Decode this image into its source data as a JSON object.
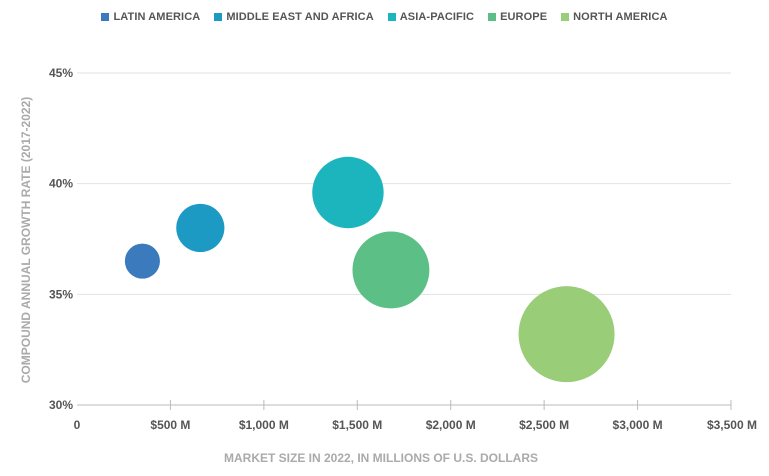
{
  "chart_data": {
    "type": "scatter",
    "title": "",
    "xlabel": "MARKET SIZE IN 2022, IN MILLIONS OF U.S. DOLLARS",
    "ylabel": "COMPOUND ANNUAL GROWTH RATE (2017-2022)",
    "xlim": [
      0,
      3500
    ],
    "ylim": [
      30,
      45
    ],
    "x_ticks": [
      {
        "value": 0,
        "label": "0"
      },
      {
        "value": 500,
        "label": "$500 M"
      },
      {
        "value": 1000,
        "label": "$1,000 M"
      },
      {
        "value": 1500,
        "label": "$1,500 M"
      },
      {
        "value": 2000,
        "label": "$2,000 M"
      },
      {
        "value": 2500,
        "label": "$2,500 M"
      },
      {
        "value": 3000,
        "label": "$3,000 M"
      },
      {
        "value": 3500,
        "label": "$3,500 M"
      }
    ],
    "y_ticks": [
      {
        "value": 30,
        "label": "30%"
      },
      {
        "value": 35,
        "label": "35%"
      },
      {
        "value": 40,
        "label": "40%"
      },
      {
        "value": 45,
        "label": "45%"
      }
    ],
    "grid": true,
    "legend": "top",
    "series": [
      {
        "name": "LATIN AMERICA",
        "x": 350,
        "y": 36.5,
        "size": 350,
        "color": "#3b7bbd"
      },
      {
        "name": "MIDDLE EAST AND AFRICA",
        "x": 660,
        "y": 38.0,
        "size": 660,
        "color": "#1d9ac4"
      },
      {
        "name": "ASIA-PACIFIC",
        "x": 1450,
        "y": 39.6,
        "size": 1450,
        "color": "#1cb5be"
      },
      {
        "name": "EUROPE",
        "x": 1680,
        "y": 36.1,
        "size": 1680,
        "color": "#5cbf86"
      },
      {
        "name": "NORTH AMERICA",
        "x": 2620,
        "y": 33.2,
        "size": 2620,
        "color": "#9acd78"
      }
    ]
  }
}
